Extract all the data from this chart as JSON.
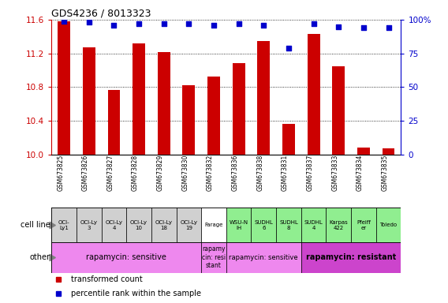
{
  "title": "GDS4236 / 8013323",
  "samples": [
    "GSM673825",
    "GSM673826",
    "GSM673827",
    "GSM673828",
    "GSM673829",
    "GSM673830",
    "GSM673832",
    "GSM673836",
    "GSM673838",
    "GSM673831",
    "GSM673837",
    "GSM673833",
    "GSM673834",
    "GSM673835"
  ],
  "bar_values": [
    11.58,
    11.27,
    10.77,
    11.32,
    11.22,
    10.82,
    10.93,
    11.08,
    11.35,
    10.36,
    11.43,
    11.05,
    10.08,
    10.07
  ],
  "percentile_values": [
    99,
    98,
    96,
    97,
    97,
    97,
    96,
    97,
    96,
    79,
    97,
    95,
    94,
    94
  ],
  "ylim": [
    10.0,
    11.6
  ],
  "yticks": [
    10.0,
    10.4,
    10.8,
    11.2,
    11.6
  ],
  "bar_color": "#cc0000",
  "dot_color": "#0000cc",
  "cell_line_labels": [
    "OCI-\nLy1",
    "OCI-Ly\n3",
    "OCI-Ly\n4",
    "OCI-Ly\n10",
    "OCI-Ly\n18",
    "OCI-Ly\n19",
    "Farage",
    "WSU-N\nIH",
    "SUDHL\n6",
    "SUDHL\n8",
    "SUDHL\n4",
    "Karpas\n422",
    "Pfeiff\ner",
    "Toledo"
  ],
  "cell_line_colors": [
    "#d0d0d0",
    "#d0d0d0",
    "#d0d0d0",
    "#d0d0d0",
    "#d0d0d0",
    "#d0d0d0",
    "#ffffff",
    "#90ee90",
    "#90ee90",
    "#90ee90",
    "#90ee90",
    "#90ee90",
    "#90ee90",
    "#90ee90"
  ],
  "span_defs": [
    [
      0,
      5,
      "#ee88ee",
      "rapamycin: sensitive",
      7,
      false
    ],
    [
      6,
      6,
      "#ee88ee",
      "rapamy\ncin: resi\nstant",
      5.5,
      false
    ],
    [
      7,
      9,
      "#ee88ee",
      "rapamycin: sensitive",
      6,
      false
    ],
    [
      10,
      13,
      "#cc44cc",
      "rapamycin: resistant",
      7,
      true
    ]
  ],
  "background_color": "#ffffff",
  "legend_red": "transformed count",
  "legend_blue": "percentile rank within the sample",
  "right_tick_labels": [
    "0",
    "25",
    "50",
    "75",
    "100%"
  ]
}
